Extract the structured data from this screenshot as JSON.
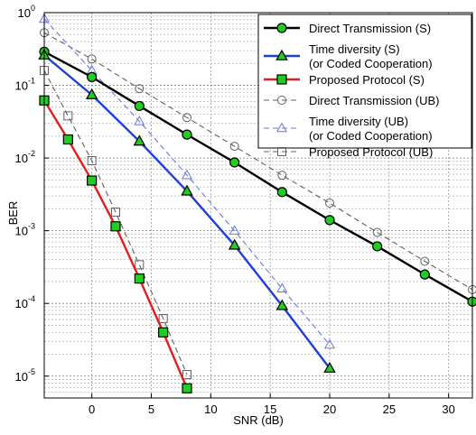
{
  "chart_data": {
    "type": "line",
    "xlabel": "SNR (dB)",
    "ylabel": "BER",
    "x_scale": "linear",
    "y_scale": "log",
    "xlim": [
      -4,
      32
    ],
    "ylim": [
      5e-06,
      1
    ],
    "x_ticks": [
      0,
      5,
      10,
      15,
      20,
      25,
      30
    ],
    "y_ticks": [
      {
        "value": 1,
        "base": "10",
        "exp": "0"
      },
      {
        "value": 0.1,
        "base": "10",
        "exp": "-1"
      },
      {
        "value": 0.01,
        "base": "10",
        "exp": "-2"
      },
      {
        "value": 0.001,
        "base": "10",
        "exp": "-3"
      },
      {
        "value": 0.0001,
        "base": "10",
        "exp": "-4"
      },
      {
        "value": 1e-05,
        "base": "10",
        "exp": "-5"
      }
    ],
    "grid": true,
    "legend_position": "top-right",
    "series": [
      {
        "name": "Direct Transmission (S)",
        "color": "#000000",
        "line": "solid",
        "marker": "circle",
        "marker_fill": "#22cc22",
        "x": [
          -4,
          0,
          4,
          8,
          12,
          16,
          20,
          24,
          28,
          32
        ],
        "y": [
          0.29,
          0.13,
          0.052,
          0.021,
          0.0087,
          0.0034,
          0.0014,
          0.00061,
          0.00025,
          0.000106
        ]
      },
      {
        "name": "Time diversity (S)\n(or Coded Cooperation)",
        "color": "#1f3fd6",
        "line": "solid",
        "marker": "triangle",
        "marker_fill": "#22cc22",
        "x": [
          -4,
          0,
          4,
          8,
          12,
          16,
          20
        ],
        "y": [
          0.26,
          0.074,
          0.017,
          0.0035,
          0.00063,
          9.3e-05,
          1.28e-05
        ]
      },
      {
        "name": "Proposed Protocol (S)",
        "color": "#e02020",
        "line": "solid",
        "marker": "square",
        "marker_fill": "#22cc22",
        "x": [
          -4,
          -2,
          0,
          2,
          4,
          6,
          8
        ],
        "y": [
          0.062,
          0.018,
          0.0049,
          0.00115,
          0.00022,
          4e-05,
          6.8e-06
        ]
      },
      {
        "name": "Direct Transmission (UB)",
        "color": "#606060",
        "line": "dashed",
        "marker": "circle",
        "marker_fill": "none",
        "x": [
          -4,
          0,
          4,
          8,
          12,
          16,
          20,
          24,
          28,
          32
        ],
        "y": [
          0.53,
          0.23,
          0.09,
          0.036,
          0.0145,
          0.0058,
          0.0024,
          0.00095,
          0.00038,
          0.000155
        ]
      },
      {
        "name": "Time diversity (UB)\n(or Coded Cooperation)",
        "color": "#6a78e0",
        "line": "dashed",
        "marker": "triangle",
        "marker_fill": "none",
        "x": [
          -4,
          0,
          4,
          8,
          12,
          16,
          20
        ],
        "y": [
          0.82,
          0.16,
          0.032,
          0.0058,
          0.001,
          0.00016,
          2.7e-05
        ]
      },
      {
        "name": "Proposed Protocol (UB)",
        "color": "#606060",
        "line": "dashed",
        "marker": "square",
        "marker_fill": "none",
        "x": [
          -4,
          -2,
          0,
          2,
          4,
          6,
          8
        ],
        "y": [
          0.16,
          0.038,
          0.0092,
          0.0018,
          0.00034,
          6.2e-05,
          1.05e-05
        ]
      }
    ]
  }
}
